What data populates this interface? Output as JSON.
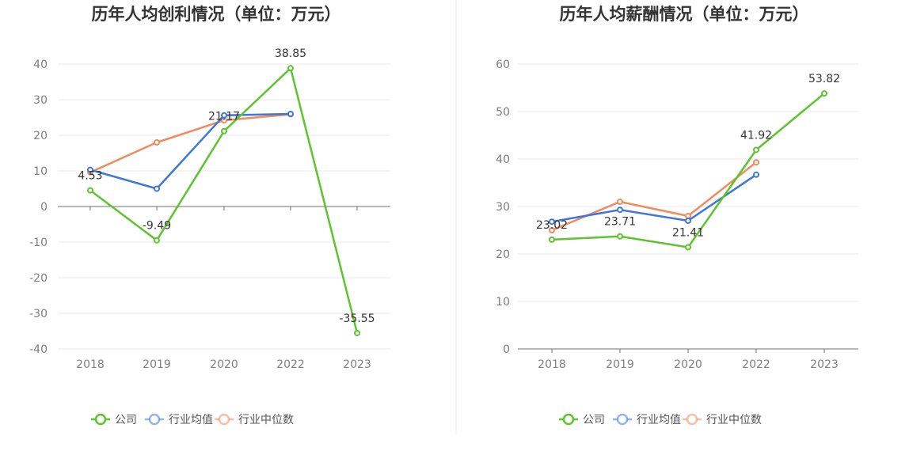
{
  "charts": [
    {
      "title": "历年人均创利情况（单位：万元）",
      "chart_data": {
        "type": "line",
        "title": "历年人均创利情况（单位：万元）",
        "categories": [
          "2018",
          "2019",
          "2020",
          "2022",
          "2023"
        ],
        "ylim": [
          -40,
          40
        ],
        "yticks": [
          40,
          30,
          20,
          10,
          0,
          -10,
          -20,
          -30,
          -40
        ],
        "grid": true,
        "legend_position": "bottom",
        "series": [
          {
            "name": "公司",
            "values": [
              4.53,
              -9.49,
              21.17,
              38.85,
              -35.55
            ],
            "labels": [
              "4.53",
              "-9.49",
              "21.17",
              "38.85",
              "-35.55"
            ],
            "color": "#5ec42e"
          },
          {
            "name": "行业均值",
            "values": [
              10.3,
              5.0,
              25.6,
              26.0,
              null
            ],
            "color": "#3d78d8"
          },
          {
            "name": "行业中位数",
            "values": [
              9.6,
              18.0,
              24.2,
              25.9,
              null
            ],
            "color": "#f08b5e"
          }
        ]
      }
    },
    {
      "title": "历年人均薪酬情况（单位：万元）",
      "chart_data": {
        "type": "line",
        "title": "历年人均薪酬情况（单位：万元）",
        "categories": [
          "2018",
          "2019",
          "2020",
          "2022",
          "2023"
        ],
        "ylim": [
          0,
          60
        ],
        "yticks": [
          60,
          50,
          40,
          30,
          20,
          10,
          0
        ],
        "grid": true,
        "legend_position": "bottom",
        "series": [
          {
            "name": "公司",
            "values": [
              23.02,
              23.71,
              21.41,
              41.92,
              53.82
            ],
            "labels": [
              "23.02",
              "23.71",
              "21.41",
              "41.92",
              "53.82"
            ],
            "color": "#5ec42e"
          },
          {
            "name": "行业均值",
            "values": [
              26.8,
              29.3,
              27.0,
              36.7,
              null
            ],
            "color": "#3d78d8"
          },
          {
            "name": "行业中位数",
            "values": [
              25.0,
              31.0,
              28.0,
              39.3,
              null
            ],
            "color": "#f08b5e"
          }
        ]
      }
    }
  ]
}
